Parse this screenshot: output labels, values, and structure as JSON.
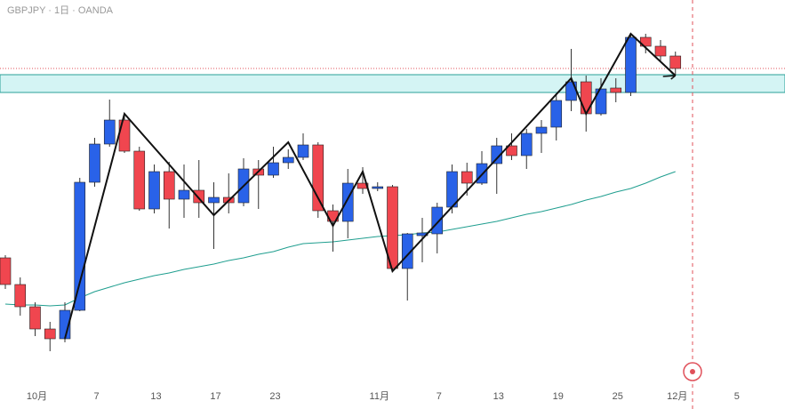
{
  "chart_data": {
    "type": "candlestick",
    "title": "GBPJPY · 1日 · OANDA",
    "categories": [
      null,
      null,
      "10月",
      null,
      null,
      null,
      "7",
      null,
      null,
      null,
      "13",
      null,
      null,
      null,
      "17",
      null,
      null,
      null,
      "23",
      null,
      null,
      null,
      null,
      null,
      null,
      "11月",
      null,
      null,
      null,
      "7",
      null,
      null,
      null,
      "13",
      null,
      null,
      null,
      "19",
      null,
      null,
      null,
      "25",
      null,
      null,
      null,
      "12月",
      null,
      null,
      null,
      "5"
    ],
    "open": [
      204.75,
      204.0,
      203.375,
      202.75,
      202.475,
      203.275,
      206.875,
      207.95,
      208.625,
      207.75,
      206.125,
      207.175,
      206.4,
      206.65,
      206.3,
      206.45,
      206.3,
      207.25,
      207.075,
      207.425,
      207.575,
      207.925,
      206.075,
      205.775,
      206.85,
      206.7,
      206.75,
      204.45,
      205.375,
      205.425,
      206.175,
      207.175,
      206.85,
      207.4,
      207.9,
      207.625,
      208.25,
      208.425,
      209.175,
      209.7,
      208.8,
      209.525,
      209.4,
      210.95,
      210.7,
      210.425,
      null,
      null,
      null,
      null
    ],
    "high": [
      204.825,
      204.2,
      203.5,
      202.95,
      203.5,
      207.0,
      208.125,
      209.2,
      208.8,
      207.875,
      207.375,
      207.45,
      207.375,
      207.5,
      206.875,
      207.125,
      207.55,
      207.5,
      207.875,
      207.8,
      208.25,
      208.0,
      206.25,
      207.25,
      207.3,
      206.875,
      206.8,
      205.45,
      205.875,
      206.3,
      207.375,
      207.425,
      207.75,
      208.125,
      208.25,
      208.375,
      208.625,
      209.375,
      210.625,
      209.875,
      209.8,
      209.8,
      211.05,
      211.05,
      210.875,
      210.55,
      null,
      null,
      null,
      null
    ],
    "low": [
      203.875,
      203.125,
      202.55,
      202.125,
      202.375,
      203.25,
      206.75,
      207.875,
      207.7,
      206.075,
      206.0,
      205.575,
      205.875,
      205.875,
      205.0,
      206.0,
      206.2,
      206.125,
      207.0,
      207.25,
      207.5,
      205.875,
      204.925,
      205.3,
      206.55,
      206.625,
      204.375,
      203.55,
      204.625,
      204.875,
      206.0,
      206.5,
      206.8,
      206.55,
      207.5,
      207.25,
      207.7,
      208.05,
      208.875,
      208.3,
      208.75,
      209.125,
      209.3,
      210.5,
      210.3,
      209.875,
      null,
      null,
      null,
      null
    ],
    "close": [
      204.0,
      203.375,
      202.75,
      202.475,
      203.275,
      206.875,
      207.95,
      208.625,
      207.75,
      206.125,
      207.175,
      206.4,
      206.65,
      206.3,
      206.45,
      206.3,
      207.25,
      207.075,
      207.425,
      207.575,
      207.925,
      206.075,
      205.775,
      206.85,
      206.7,
      206.75,
      204.45,
      205.425,
      205.45,
      206.175,
      207.175,
      206.85,
      207.4,
      207.9,
      207.625,
      208.25,
      208.425,
      209.175,
      209.7,
      208.8,
      209.5,
      209.4,
      210.95,
      210.7,
      210.425,
      210.075,
      null,
      null,
      null,
      null
    ],
    "moving_average": [
      203.45,
      203.425,
      203.425,
      203.4,
      203.425,
      203.625,
      203.8,
      203.925,
      204.05,
      204.15,
      204.25,
      204.325,
      204.425,
      204.5,
      204.575,
      204.675,
      204.75,
      204.85,
      204.925,
      205.05,
      205.15,
      205.175,
      205.2,
      205.25,
      205.3,
      205.35,
      205.375,
      205.4,
      205.45,
      205.475,
      205.55,
      205.625,
      205.7,
      205.775,
      205.875,
      205.975,
      206.05,
      206.15,
      206.25,
      206.375,
      206.475,
      206.6,
      206.7,
      206.85,
      207.025,
      207.175,
      null,
      null,
      null,
      null
    ],
    "zigzag": {
      "points": [
        4,
        8,
        14,
        19,
        22,
        24,
        26,
        38,
        39,
        42,
        45
      ],
      "values": [
        202.475,
        208.8,
        205.95,
        208.0,
        205.65,
        207.175,
        204.375,
        209.8,
        208.8,
        211.05,
        209.875
      ]
    },
    "zone": [
      209.4,
      209.9
    ],
    "price_line": 210.075,
    "up_color": "#2962e8",
    "down_color": "#f0464f",
    "ma_color": "#1f9e8f",
    "ylim": [
      200.5,
      212
    ]
  }
}
